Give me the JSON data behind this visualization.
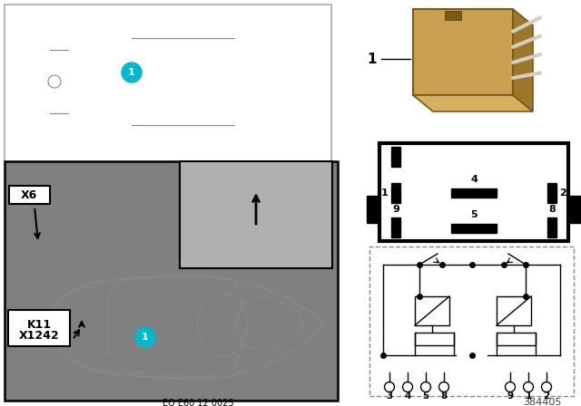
{
  "bg_color": "#ffffff",
  "relay_tan_face": "#c8a050",
  "relay_tan_top": "#d4b060",
  "relay_tan_side": "#9a7828",
  "relay_dark": "#2a2010",
  "car_line_color": "#888888",
  "car_box_edge": "#aaaaaa",
  "photo_gray": "#909090",
  "inset_gray": "#b0b0b0",
  "teal": "#00b8cc",
  "black": "#000000",
  "white": "#ffffff",
  "dash_gray": "#888888",
  "connector_label": "X6",
  "part_label1": "K11",
  "part_label2": "X1242",
  "doc_ref": "EO E60 12 0025",
  "part_num": "384405",
  "circle_label": "1",
  "relay_label": "1"
}
